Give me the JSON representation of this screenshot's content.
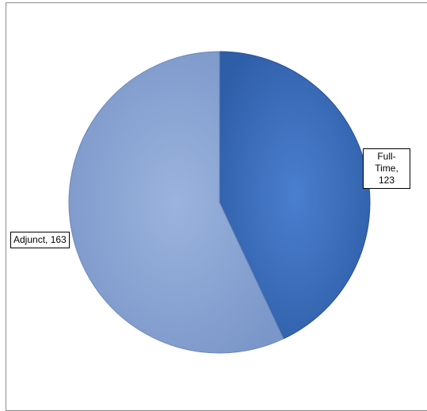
{
  "chart_data": {
    "type": "pie",
    "title": "",
    "categories": [
      "Full-Time",
      "Adjunct"
    ],
    "values": [
      123,
      163
    ],
    "data_labels": [
      "Full-\nTime, 123",
      "Adjunct, 163"
    ],
    "colors": [
      "#3d6fbf",
      "#8ba6d6"
    ],
    "legend": "none",
    "start_angle_deg": 0,
    "direction": "clockwise"
  }
}
